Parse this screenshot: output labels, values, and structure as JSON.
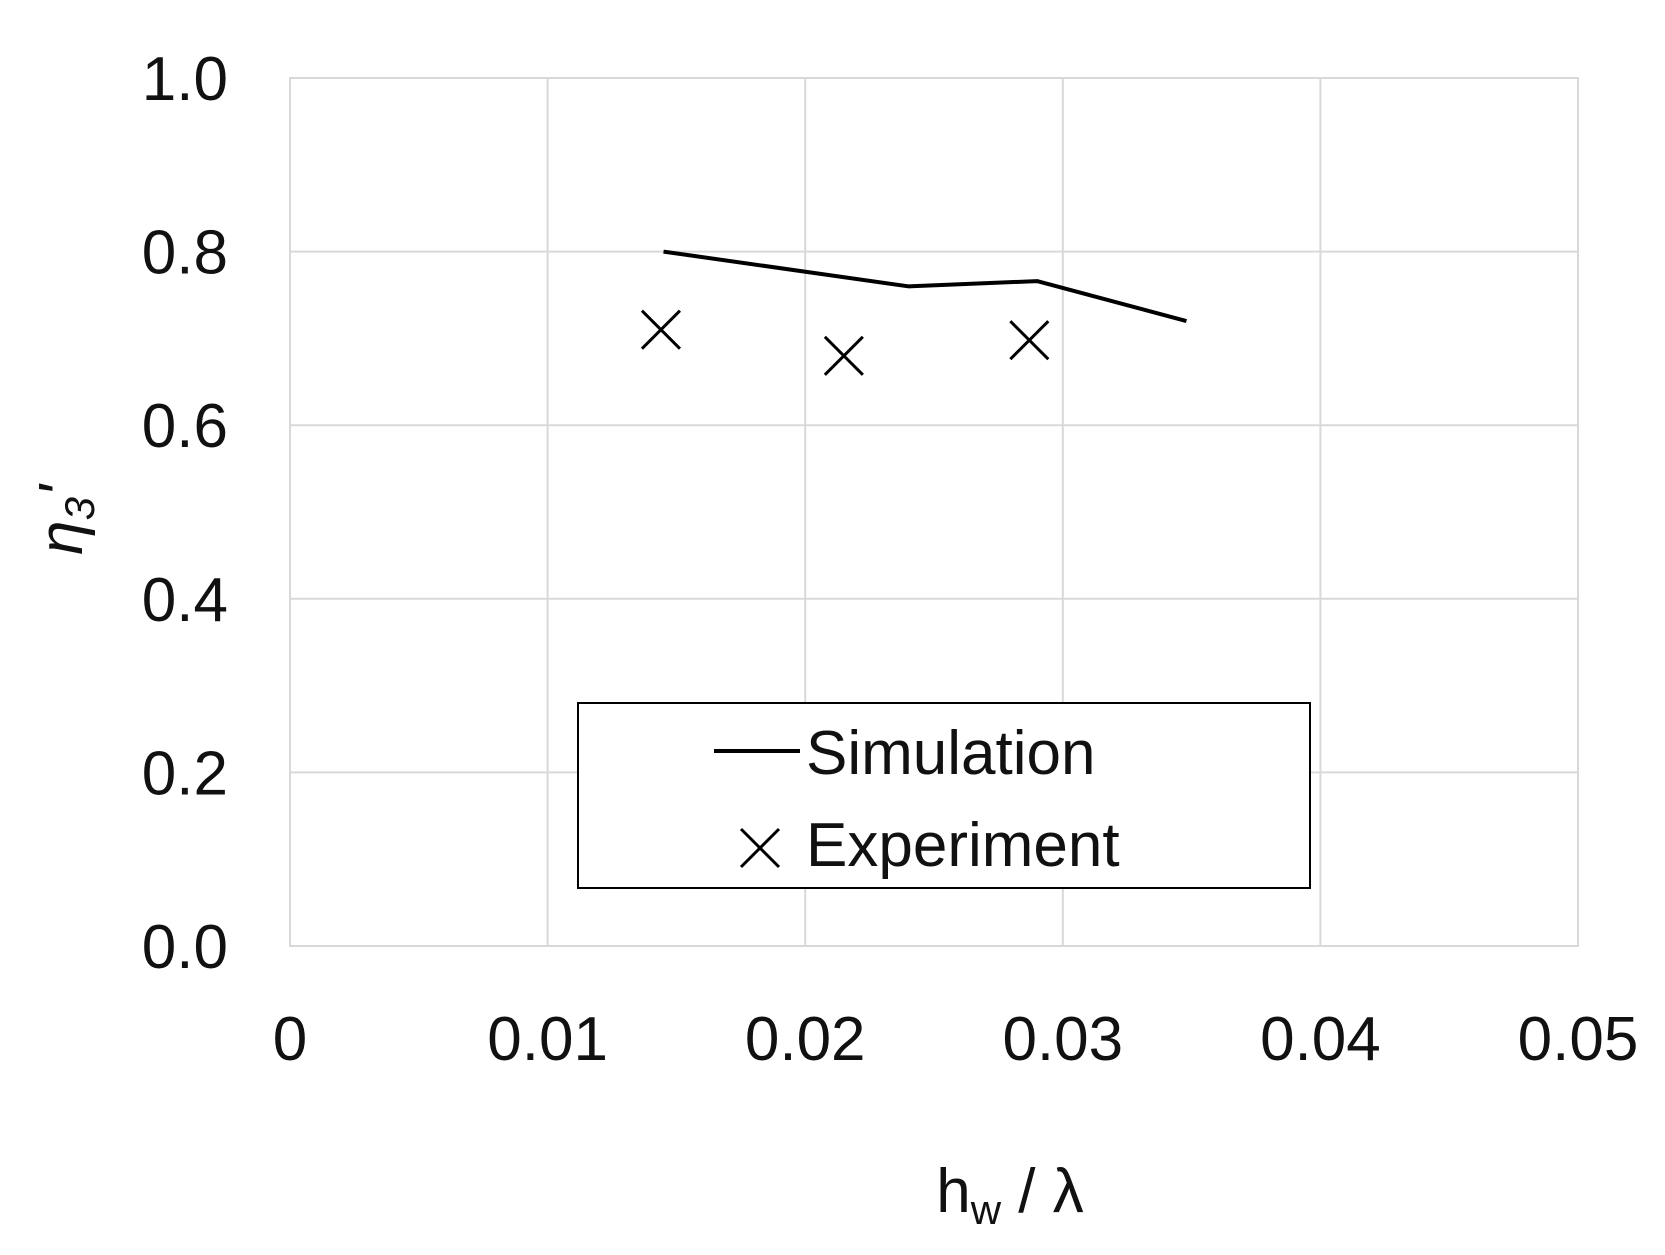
{
  "chart_data": {
    "type": "line",
    "x_label": {
      "base": "h",
      "sub": "w",
      "rest": " / λ"
    },
    "y_label": {
      "base": "η",
      "sub": "3",
      "rest": "'"
    },
    "xlim": [
      0,
      0.05
    ],
    "ylim": [
      0,
      1.0
    ],
    "x_ticks": [
      0,
      0.01,
      0.02,
      0.03,
      0.04,
      0.05
    ],
    "x_tick_labels": [
      "0",
      "0.01",
      "0.02",
      "0.03",
      "0.04",
      "0.05"
    ],
    "y_ticks": [
      0,
      0.2,
      0.4,
      0.6,
      0.8,
      1.0
    ],
    "y_tick_labels": [
      "0.0",
      "0.2",
      "0.4",
      "0.6",
      "0.8",
      "1.0"
    ],
    "grid": true,
    "legend_position": "bottom-center",
    "series": [
      {
        "name": "Simulation",
        "kind": "line",
        "color": "#000000",
        "x": [
          0.0145,
          0.024,
          0.029,
          0.0348
        ],
        "y": [
          0.8,
          0.76,
          0.766,
          0.72
        ]
      },
      {
        "name": "Experiment",
        "kind": "scatter",
        "marker": "x",
        "color": "#000000",
        "x": [
          0.0144,
          0.0215,
          0.0287
        ],
        "y": [
          0.71,
          0.68,
          0.698
        ]
      }
    ]
  }
}
